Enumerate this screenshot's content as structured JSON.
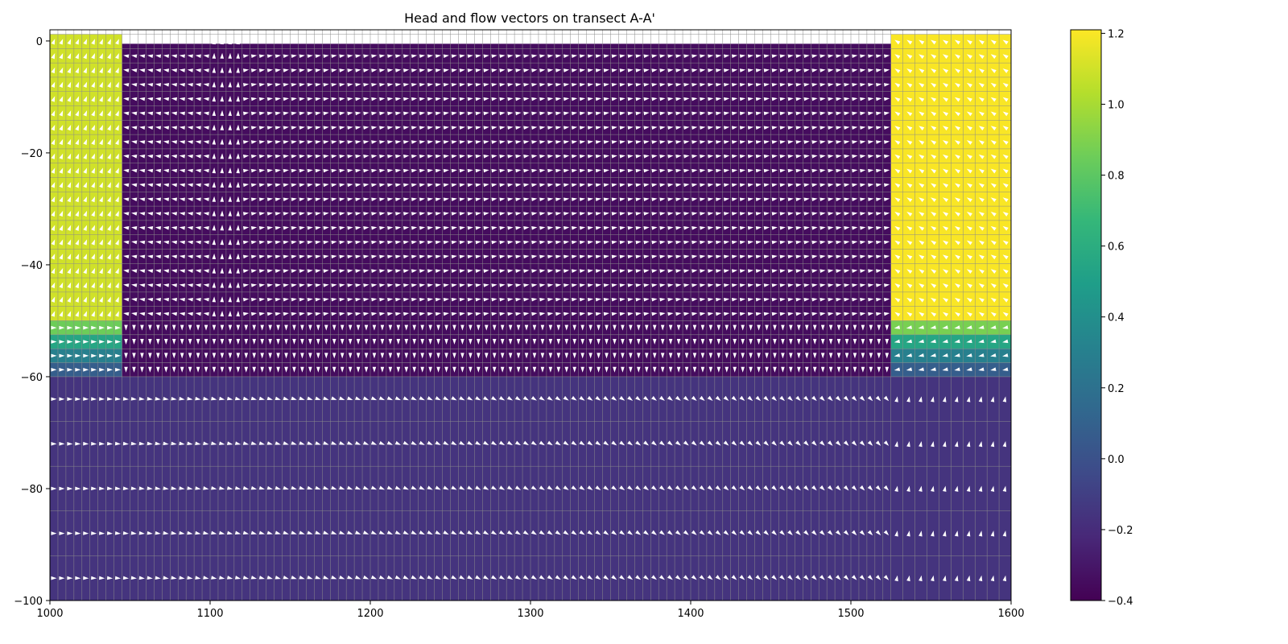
{
  "chart_data": {
    "type": "heatmap",
    "title": "Head and flow vectors on transect A-A'",
    "xlabel": "",
    "ylabel": "",
    "xlim": [
      1000,
      1600
    ],
    "ylim": [
      -100,
      2
    ],
    "xticks": [
      1000,
      1100,
      1200,
      1300,
      1400,
      1500,
      1600
    ],
    "xtick_labels": [
      "1000",
      "1100",
      "1200",
      "1300",
      "1400",
      "1500",
      "1600"
    ],
    "yticks": [
      0,
      -20,
      -40,
      -60,
      -80,
      -100
    ],
    "ytick_labels": [
      "0",
      "−20",
      "−40",
      "−60",
      "−80",
      "−100"
    ],
    "colormap": "viridis",
    "colorbar": {
      "range": [
        -0.4,
        1.21
      ],
      "ticks": [
        1.2,
        1.0,
        0.8,
        0.6,
        0.4,
        0.2,
        0.0,
        -0.2,
        -0.4
      ],
      "tick_labels": [
        "1.2",
        "1.0",
        "0.8",
        "0.6",
        "0.4",
        "0.2",
        "0.0",
        "−0.2",
        "−0.4"
      ]
    },
    "grid": true,
    "layers": [
      {
        "top": 1.2,
        "bottom": -50,
        "zones": [
          {
            "x0": 1000,
            "x1": 1045,
            "head": 1.1
          },
          {
            "x0": 1045,
            "x1": 1525,
            "head": -0.35
          },
          {
            "x0": 1525,
            "x1": 1600,
            "head": 1.2
          }
        ],
        "empty_top_region": {
          "x0": 1045,
          "x1": 1525,
          "top": 2,
          "bottom": -0.5
        }
      },
      {
        "top": -50,
        "bottom": -52.5,
        "zones": [
          {
            "x0": 1000,
            "x1": 1045,
            "head": 0.85
          },
          {
            "x0": 1045,
            "x1": 1525,
            "head": -0.35
          },
          {
            "x0": 1525,
            "x1": 1600,
            "head": 0.88
          }
        ]
      },
      {
        "top": -52.5,
        "bottom": -55,
        "zones": [
          {
            "x0": 1000,
            "x1": 1045,
            "head": 0.55
          },
          {
            "x0": 1045,
            "x1": 1525,
            "head": -0.35
          },
          {
            "x0": 1525,
            "x1": 1600,
            "head": 0.55
          }
        ]
      },
      {
        "top": -55,
        "bottom": -57.5,
        "zones": [
          {
            "x0": 1000,
            "x1": 1045,
            "head": 0.3
          },
          {
            "x0": 1045,
            "x1": 1525,
            "head": -0.35
          },
          {
            "x0": 1525,
            "x1": 1600,
            "head": 0.3
          }
        ]
      },
      {
        "top": -57.5,
        "bottom": -60,
        "zones": [
          {
            "x0": 1000,
            "x1": 1045,
            "head": 0.08
          },
          {
            "x0": 1045,
            "x1": 1525,
            "head": -0.35
          },
          {
            "x0": 1525,
            "x1": 1600,
            "head": 0.08
          }
        ]
      },
      {
        "top": -60,
        "bottom": -100,
        "zones": [
          {
            "x0": 1000,
            "x1": 1600,
            "head": -0.16
          }
        ]
      }
    ],
    "vector_color": "#ffffff",
    "grid_color": "#8c8c8c"
  }
}
